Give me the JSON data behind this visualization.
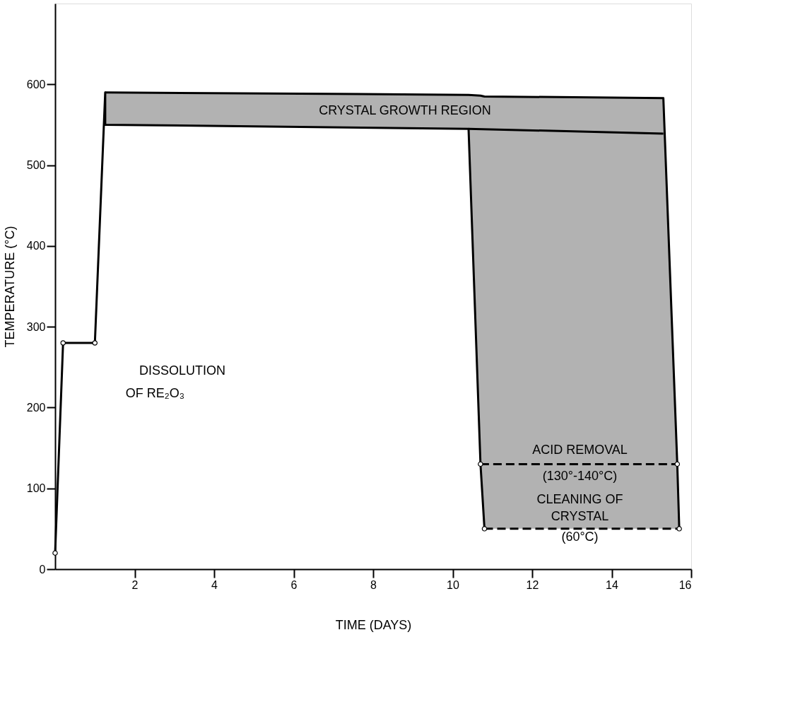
{
  "chart_data": {
    "type": "line",
    "xlabel": "TIME (DAYS)",
    "ylabel": "TEMPERATURE (°C)",
    "xlim": [
      0,
      16
    ],
    "ylim": [
      0,
      700
    ],
    "xticks": [
      2,
      4,
      6,
      8,
      10,
      12,
      14,
      16
    ],
    "yticks": [
      0,
      100,
      200,
      300,
      400,
      500,
      600
    ],
    "grid": false,
    "series": [
      {
        "color": "#000000",
        "x": [
          1.26,
          10.4,
          10.7,
          10.8,
          15.3,
          15.65,
          15.7
        ],
        "values": [
          590,
          587,
          586,
          585,
          583,
          130,
          50
        ],
        "lower": [
          550,
          545,
          130,
          50,
          50,
          50,
          50
        ],
        "upper": [
          590,
          587,
          586,
          585,
          583,
          130,
          50
        ]
      },
      {
        "color": "#000000",
        "x": [
          0,
          0.2,
          1.0,
          1.26,
          1.26,
          10.4,
          10.7,
          10.8
        ],
        "values": [
          20,
          280,
          280,
          590,
          550,
          545,
          130,
          50
        ]
      },
      {
        "color": "#000000",
        "x": [
          10.4,
          15.3
        ],
        "values": [
          545,
          539
        ]
      },
      {
        "color": "#000000",
        "line_style": "dashed",
        "x": [
          10.7,
          15.65
        ],
        "values": [
          130,
          130
        ]
      },
      {
        "color": "#000000",
        "line_style": "dashed",
        "x": [
          10.8,
          15.7
        ],
        "values": [
          50,
          50
        ]
      },
      {
        "type": "scatter",
        "color": "#000000",
        "marker": "circle",
        "x": [
          0,
          0.2,
          1.0,
          10.7,
          10.8,
          15.65,
          15.7
        ],
        "values": [
          20,
          280,
          280,
          130,
          50,
          130,
          50
        ]
      }
    ],
    "annotations": [
      "CRYSTAL GROWTH REGION",
      "DISSOLUTION",
      "OF RE₂O₃",
      "ACID REMOVAL",
      "(130°-140°C)",
      "CLEANING OF",
      "CRYSTAL",
      "(60°C)"
    ]
  }
}
